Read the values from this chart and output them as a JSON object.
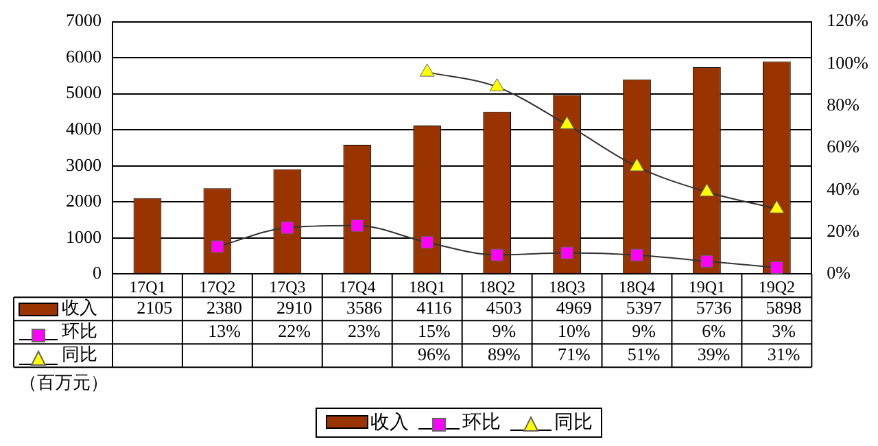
{
  "chart_data": {
    "type": "bar",
    "categories": [
      "17Q1",
      "17Q2",
      "17Q3",
      "17Q4",
      "18Q1",
      "18Q2",
      "18Q3",
      "18Q4",
      "19Q1",
      "19Q2"
    ],
    "series": [
      {
        "name": "收入",
        "type": "bar",
        "color": "#993300",
        "values": [
          2105,
          2380,
          2910,
          3586,
          4116,
          4503,
          4969,
          5397,
          5736,
          5898
        ],
        "value_labels": [
          "2105",
          "2380",
          "2910",
          "3586",
          "4116",
          "4503",
          "4969",
          "5397",
          "5736",
          "5898"
        ]
      },
      {
        "name": "环比",
        "type": "line",
        "axis": "y2",
        "color": "#ff00ff",
        "marker": "square",
        "values": [
          null,
          13,
          22,
          23,
          15,
          9,
          10,
          9,
          6,
          3
        ],
        "value_labels": [
          null,
          "13%",
          "22%",
          "23%",
          "15%",
          "9%",
          "10%",
          "9%",
          "6%",
          "3%"
        ]
      },
      {
        "name": "同比",
        "type": "line",
        "axis": "y2",
        "color": "#ffff00",
        "marker": "triangle",
        "values": [
          null,
          null,
          null,
          null,
          96,
          89,
          71,
          51,
          39,
          31
        ],
        "value_labels": [
          null,
          null,
          null,
          null,
          "96%",
          "89%",
          "71%",
          "51%",
          "39%",
          "31%"
        ]
      }
    ],
    "ylim": [
      0,
      7000
    ],
    "yticks": [
      0,
      1000,
      2000,
      3000,
      4000,
      5000,
      6000,
      7000
    ],
    "y2lim": [
      0,
      120
    ],
    "y2ticks": [
      {
        "value": 0,
        "label": "0%"
      },
      {
        "value": 20,
        "label": "20%"
      },
      {
        "value": 40,
        "label": "40%"
      },
      {
        "value": 60,
        "label": "60%"
      },
      {
        "value": 80,
        "label": "80%"
      },
      {
        "value": 100,
        "label": "100%"
      },
      {
        "value": 120,
        "label": "120%"
      }
    ],
    "grid": "y",
    "legend": "bottom",
    "annotations": [
      "（百万元）"
    ]
  }
}
